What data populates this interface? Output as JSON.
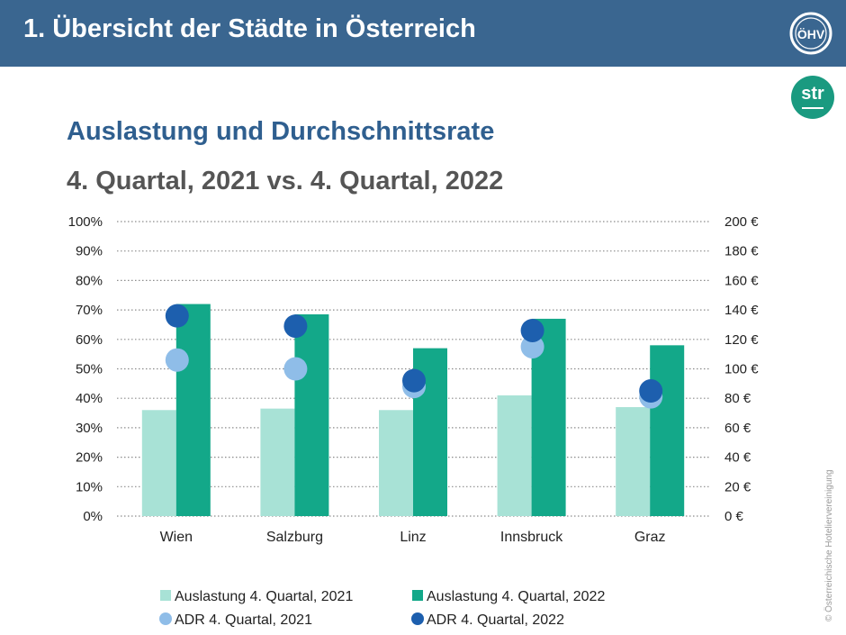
{
  "header": {
    "title": "1. Übersicht der Städte in Österreich"
  },
  "logos": {
    "ohv": "ÖHV",
    "str": "str"
  },
  "slide": {
    "subtitle": "Auslastung und Durchschnittsrate",
    "period": "4. Quartal, 2021 vs. 4. Quartal, 2022",
    "copyright": "© Österreichische Hoteliervereinigung"
  },
  "chart_data": {
    "type": "bar",
    "categories": [
      "Wien",
      "Salzburg",
      "Linz",
      "Innsbruck",
      "Graz"
    ],
    "series": [
      {
        "name": "Auslastung 4. Quartal, 2021",
        "type": "bar",
        "axis": "left",
        "color": "#a8e2d6",
        "values": [
          36,
          36.5,
          36,
          41,
          37
        ]
      },
      {
        "name": "Auslastung 4. Quartal, 2022",
        "type": "bar",
        "axis": "left",
        "color": "#13a889",
        "values": [
          72,
          68.5,
          57,
          67,
          58
        ]
      },
      {
        "name": "ADR 4. Quartal, 2021",
        "type": "scatter",
        "axis": "right",
        "color": "#8fbde8",
        "values": [
          106,
          100,
          88,
          115,
          81
        ]
      },
      {
        "name": "ADR 4. Quartal, 2022",
        "type": "scatter",
        "axis": "right",
        "color": "#1d5fae",
        "values": [
          136,
          129,
          92,
          126,
          85
        ]
      }
    ],
    "y_left": {
      "min": 0,
      "max": 100,
      "ticks": [
        "0%",
        "10%",
        "20%",
        "30%",
        "40%",
        "50%",
        "60%",
        "70%",
        "80%",
        "90%",
        "100%"
      ]
    },
    "y_right": {
      "min": 0,
      "max": 200,
      "ticks": [
        "0 €",
        "20 €",
        "40 €",
        "60 €",
        "80 €",
        "100 €",
        "120 €",
        "140 €",
        "160 €",
        "180 €",
        "200 €"
      ]
    },
    "grid": true,
    "legend": "bottom"
  }
}
